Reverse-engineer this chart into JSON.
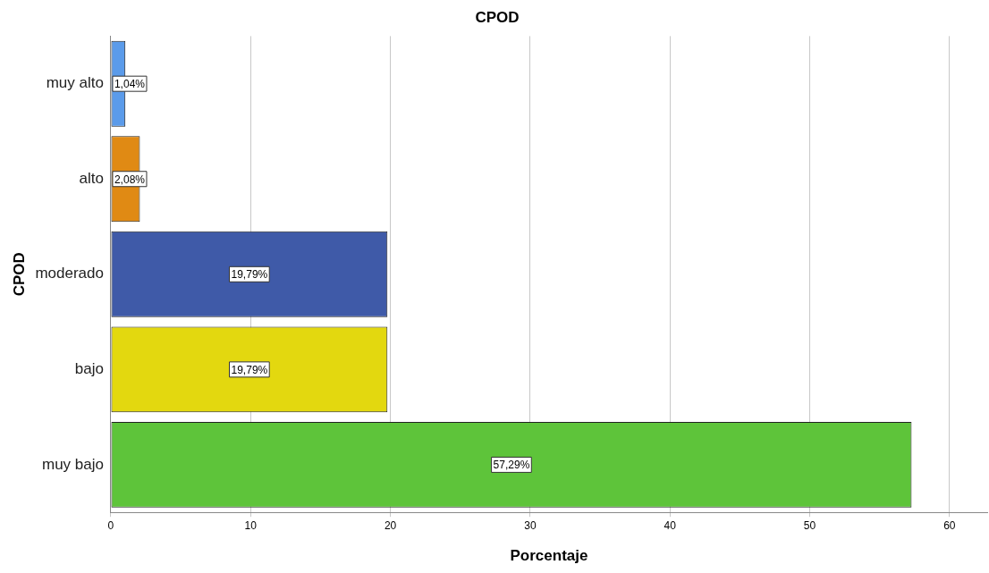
{
  "chart_data": {
    "type": "bar",
    "orientation": "horizontal",
    "title": "CPOD",
    "xlabel": "Porcentaje",
    "ylabel": "CPOD",
    "categories": [
      "muy alto",
      "alto",
      "moderado",
      "bajo",
      "muy bajo"
    ],
    "values": [
      1.04,
      2.08,
      19.79,
      19.79,
      57.29
    ],
    "colors": [
      "#5b9bea",
      "#e08a14",
      "#3f5aa8",
      "#e3d80f",
      "#5ec43a"
    ],
    "value_labels": [
      "1,04%",
      "2,08%",
      "19,79%",
      "19,79%",
      "57,29%"
    ],
    "xlim": [
      0,
      62.7
    ],
    "xticks": [
      0,
      10,
      20,
      30,
      40,
      50,
      60
    ],
    "grid": "x",
    "legend": false
  }
}
